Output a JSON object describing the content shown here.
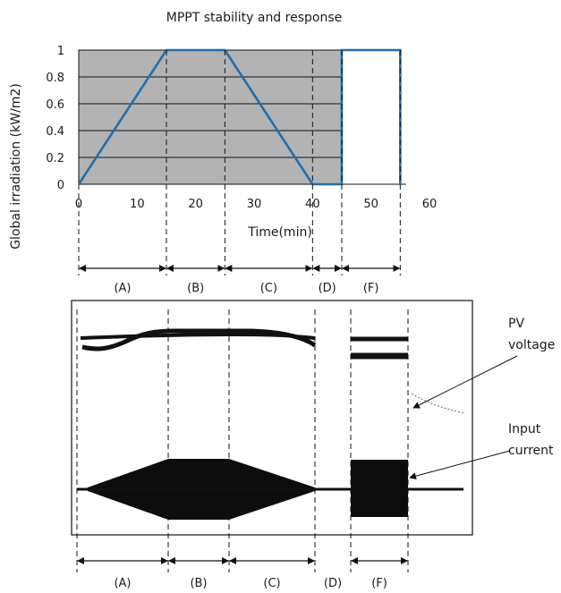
{
  "chart_data": [
    {
      "type": "line",
      "title": "MPPT stability and response",
      "xlabel": "Time(min)",
      "ylabel": "Global irradiation (kW/m2)",
      "xlim": [
        0,
        60
      ],
      "ylim": [
        0,
        1
      ],
      "xticks": [
        0,
        10,
        20,
        30,
        40,
        50,
        60
      ],
      "yticks": [
        0,
        0.2,
        0.4,
        0.6,
        0.8,
        1
      ],
      "grid": "horizontal",
      "background": "#b3b3b3",
      "line_color": "#1f6fae",
      "x": [
        0,
        15,
        25,
        40,
        45,
        45,
        55,
        55
      ],
      "y": [
        0,
        1,
        1,
        0,
        0,
        1,
        1,
        0
      ],
      "segments": [
        {
          "label": "(A)",
          "from": 0,
          "to": 15
        },
        {
          "label": "(B)",
          "from": 15,
          "to": 25
        },
        {
          "label": "(C)",
          "from": 25,
          "to": 40
        },
        {
          "label": "(D)",
          "from": 40,
          "to": 45
        },
        {
          "label": "(F)",
          "from": 45,
          "to": 55
        }
      ]
    },
    {
      "type": "line",
      "description_labels": {
        "voltage": "PV voltage",
        "current": "Input current"
      },
      "segments": [
        {
          "label": "(A)"
        },
        {
          "label": "(B)"
        },
        {
          "label": "(C)"
        },
        {
          "label": "(D)"
        },
        {
          "label": "(F)"
        }
      ]
    }
  ]
}
